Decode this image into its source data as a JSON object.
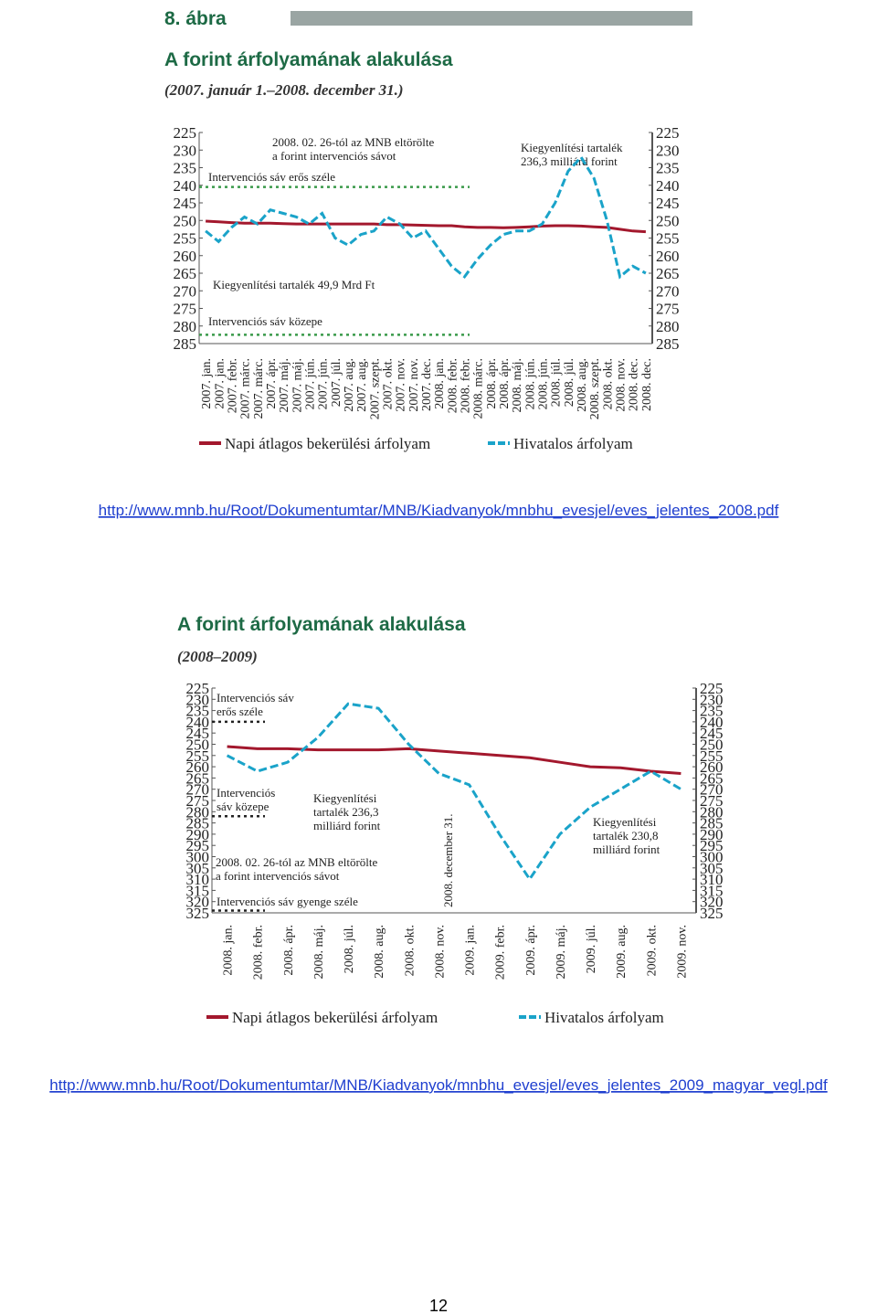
{
  "figure_label": "8. ábra",
  "chart_data": [
    {
      "type": "line",
      "title": "A forint árfolyamának alakulása",
      "subtitle": "(2007. január 1.–2008. december 31.)",
      "categories": [
        "2007. jan.",
        "2007. jan.",
        "2007. febr.",
        "2007. márc.",
        "2007. márc.",
        "2007. ápr.",
        "2007. máj.",
        "2007. máj.",
        "2007. jún.",
        "2007. jún.",
        "2007. júl.",
        "2007. aug.",
        "2007. aug.",
        "2007. szept.",
        "2007. okt.",
        "2007. nov.",
        "2007. nov.",
        "2007. dec.",
        "2008. jan.",
        "2008. febr.",
        "2008. febr.",
        "2008. márc.",
        "2008. ápr.",
        "2008. ápr.",
        "2008. máj.",
        "2008. jún.",
        "2008. jún.",
        "2008. júl.",
        "2008. júl.",
        "2008. aug.",
        "2008. szept.",
        "2008. okt.",
        "2008. nov.",
        "2008. dec.",
        "2008. dec."
      ],
      "series": [
        {
          "name": "Napi átlagos bekerülési árfolyam",
          "color": "#a3182d",
          "dashed": false,
          "values": [
            250.2,
            250.4,
            250.6,
            250.8,
            250.8,
            250.8,
            250.9,
            251,
            251,
            251,
            251,
            251,
            251,
            251,
            251.2,
            251.2,
            251.3,
            251.4,
            251.5,
            251.5,
            251.8,
            252,
            252,
            252.1,
            252,
            251.8,
            251.6,
            251.5,
            251.5,
            251.6,
            251.8,
            252,
            252.5,
            253,
            253.2
          ]
        },
        {
          "name": "Hivatalos árfolyam",
          "color": "#1aa3c9",
          "dashed": true,
          "values": [
            253,
            256,
            252,
            249,
            251,
            247,
            248,
            249,
            251,
            248,
            255,
            257,
            254,
            253,
            249,
            251,
            255,
            253,
            258,
            263,
            266,
            261,
            257,
            254,
            253,
            253,
            251,
            245,
            236,
            232,
            238,
            250,
            266,
            263,
            265
          ]
        }
      ],
      "ylim": [
        285,
        225
      ],
      "yticks": [
        225,
        230,
        235,
        240,
        245,
        250,
        255,
        260,
        265,
        270,
        275,
        280,
        285
      ],
      "y2lim": [
        285,
        225
      ],
      "y2ticks": [
        225,
        230,
        235,
        240,
        245,
        250,
        255,
        260,
        265,
        270,
        275,
        280,
        285
      ],
      "annotations": [
        {
          "text": [
            "2008. 02. 26-tól az MNB eltörölte",
            "a forint intervenciós sávot"
          ]
        },
        {
          "text": [
            "Intervenciós sáv erős széle"
          ],
          "value": 240.5
        },
        {
          "text": [
            "Kiegyenlítési tartalék",
            "236,3 milliárd forint"
          ]
        },
        {
          "text": [
            "Kiegyenlítési tartalék 49,9 Mrd Ft"
          ]
        },
        {
          "text": [
            "Intervenciós sáv közepe"
          ],
          "value": 282.5
        }
      ]
    },
    {
      "type": "line",
      "title": "A forint árfolyamának alakulása",
      "subtitle": "(2008–2009)",
      "categories": [
        "2008. jan.",
        "2008. febr.",
        "2008. ápr.",
        "2008. máj.",
        "2008. júl.",
        "2008. aug.",
        "2008. okt.",
        "2008. nov.",
        "2009. jan.",
        "2009. febr.",
        "2009. ápr.",
        "2009. máj.",
        "2009. júl.",
        "2009. aug.",
        "2009. okt.",
        "2009. nov."
      ],
      "series": [
        {
          "name": "Napi átlagos bekerülési árfolyam",
          "color": "#a3182d",
          "dashed": false,
          "values": [
            251,
            252,
            252,
            252.5,
            252.5,
            252.5,
            252,
            253,
            254,
            255,
            256,
            258,
            260,
            260.5,
            262,
            263
          ]
        },
        {
          "name": "Hivatalos árfolyam",
          "color": "#1aa3c9",
          "dashed": true,
          "values": [
            255,
            262,
            258,
            247,
            232,
            234,
            250,
            263,
            268,
            290,
            310,
            290,
            278,
            270,
            262,
            270
          ]
        }
      ],
      "ylim": [
        325,
        225
      ],
      "yticks": [
        225,
        230,
        235,
        240,
        245,
        250,
        255,
        260,
        265,
        270,
        275,
        280,
        285,
        290,
        295,
        300,
        305,
        310,
        315,
        320,
        325
      ],
      "y2lim": [
        325,
        225
      ],
      "y2ticks": [
        225,
        230,
        235,
        240,
        245,
        250,
        255,
        260,
        265,
        270,
        275,
        280,
        285,
        290,
        295,
        300,
        305,
        310,
        315,
        320,
        325
      ],
      "annotations": [
        {
          "text": [
            "Intervenciós sáv",
            "erős széle"
          ],
          "value": 240
        },
        {
          "text": [
            "Intervenciós",
            "sáv közepe"
          ],
          "value": 282
        },
        {
          "text": [
            "Kiegyenlítési",
            "tartalék 236,3",
            "milliárd forint"
          ]
        },
        {
          "text": [
            "2008. 02. 26-tól az MNB eltörölte",
            "a forint intervenciós sávot"
          ]
        },
        {
          "text": [
            "Intervenciós sáv gyenge széle"
          ],
          "value": 324
        },
        {
          "text": [
            "2008. december 31."
          ]
        },
        {
          "text": [
            "Kiegyenlítési",
            "tartalék 230,8",
            "milliárd forint"
          ]
        }
      ]
    }
  ],
  "links": [
    "http://www.mnb.hu/Root/Dokumentumtar/MNB/Kiadvanyok/mnbhu_evesjel/eves_jelentes_2008.pdf",
    "http://www.mnb.hu/Root/Dokumentumtar/MNB/Kiadvanyok/mnbhu_evesjel/eves_jelentes_2009_magyar_vegl.pdf"
  ],
  "page_number": "12"
}
